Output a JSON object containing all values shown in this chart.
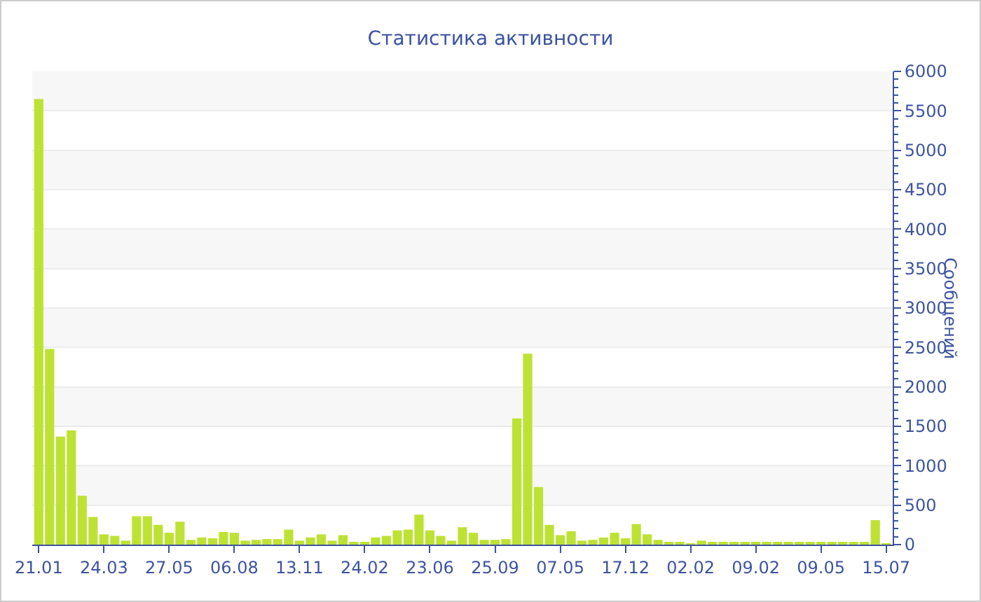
{
  "chart_data": {
    "type": "bar",
    "title": "Статистика активности",
    "ylabel": "Сообщений",
    "categories": [
      "21.01",
      null,
      null,
      null,
      null,
      null,
      "24.03",
      null,
      null,
      null,
      null,
      null,
      "27.05",
      null,
      null,
      null,
      null,
      null,
      "06.08",
      null,
      null,
      null,
      null,
      null,
      "13.11",
      null,
      null,
      null,
      null,
      null,
      "24.02",
      null,
      null,
      null,
      null,
      null,
      "23.06",
      null,
      null,
      null,
      null,
      null,
      "25.09",
      null,
      null,
      null,
      null,
      null,
      "07.05",
      null,
      null,
      null,
      null,
      null,
      "17.12",
      null,
      null,
      null,
      null,
      null,
      "02.02",
      null,
      null,
      null,
      null,
      null,
      "09.02",
      null,
      null,
      null,
      null,
      null,
      "09.05",
      null,
      null,
      null,
      null,
      null,
      "15.07"
    ],
    "values": [
      5650,
      2480,
      1370,
      1450,
      620,
      350,
      130,
      110,
      50,
      360,
      360,
      250,
      150,
      290,
      60,
      90,
      80,
      160,
      150,
      50,
      60,
      70,
      70,
      190,
      50,
      90,
      130,
      50,
      120,
      30,
      30,
      90,
      110,
      180,
      190,
      380,
      180,
      110,
      50,
      220,
      150,
      60,
      60,
      70,
      1600,
      2420,
      730,
      250,
      120,
      170,
      50,
      60,
      90,
      150,
      80,
      260,
      130,
      60,
      30,
      30,
      10,
      50,
      30,
      20,
      20,
      20,
      20,
      20,
      20,
      20,
      20,
      30,
      20,
      20,
      20,
      30,
      30,
      310,
      10
    ],
    "color": "#bde233",
    "ylim": [
      0,
      6000
    ],
    "yticks": [
      0,
      500,
      1000,
      1500,
      2000,
      2500,
      3000,
      3500,
      4000,
      4500,
      5000,
      5500,
      6000
    ],
    "grid": "y"
  }
}
